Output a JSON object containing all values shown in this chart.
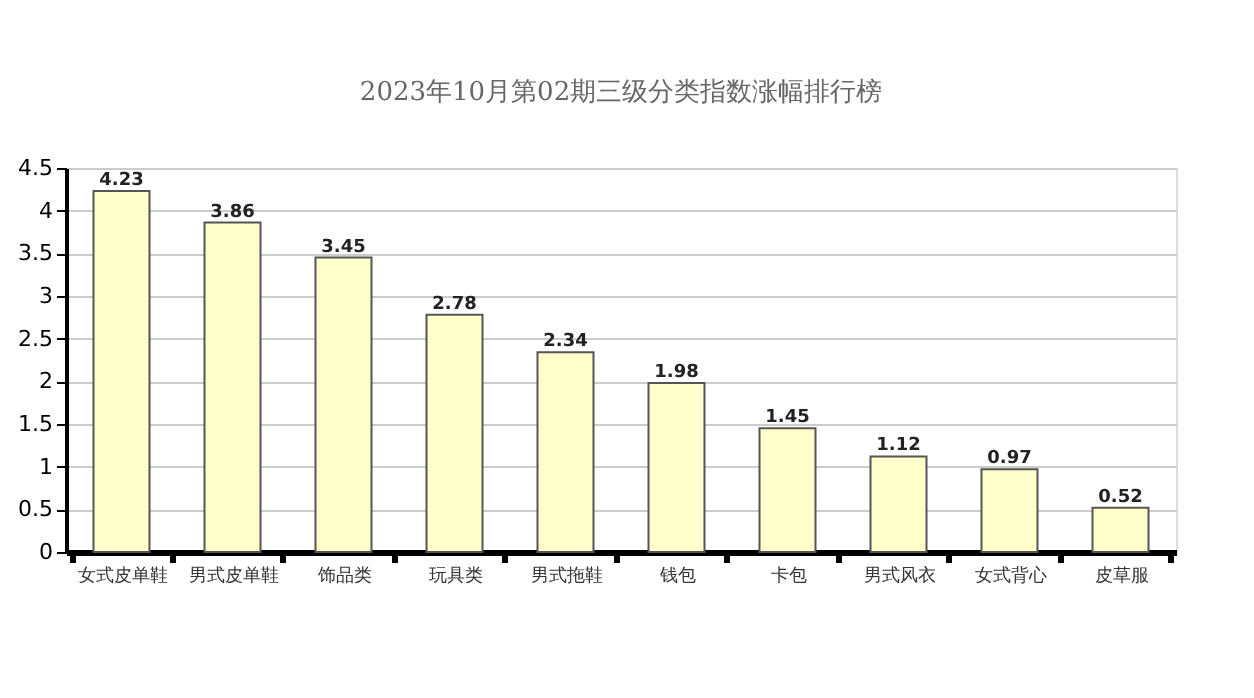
{
  "chart_data": {
    "type": "bar",
    "title": "2023年10月第02期三级分类指数涨幅排行榜",
    "categories": [
      "女式皮单鞋",
      "男式皮单鞋",
      "饰品类",
      "玩具类",
      "男式拖鞋",
      "钱包",
      "卡包",
      "男式风衣",
      "女式背心",
      "皮草服"
    ],
    "values": [
      4.23,
      3.86,
      3.45,
      2.78,
      2.34,
      1.98,
      1.45,
      1.12,
      0.97,
      0.52
    ],
    "color": "#ffffcc",
    "ylim": [
      0,
      4.5
    ],
    "yticks": [
      0,
      0.5,
      1,
      1.5,
      2,
      2.5,
      3,
      3.5,
      4,
      4.5
    ],
    "grid": "y",
    "data_labels": true
  }
}
